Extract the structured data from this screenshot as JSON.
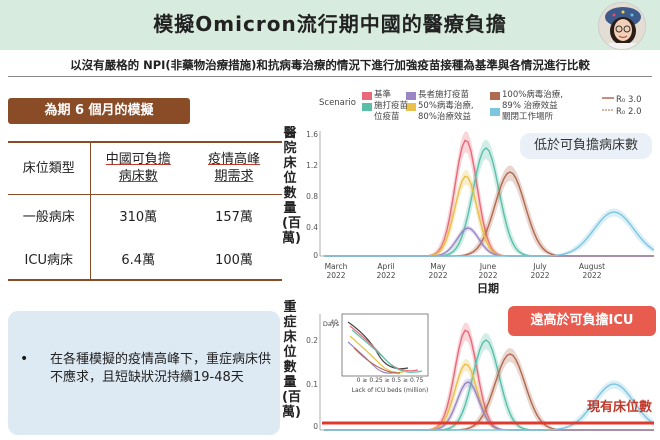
{
  "header": {
    "title": "模擬Omicron流行期中國的醫療負擔",
    "subtitle": "以沒有嚴格的 NPI(非藥物治療措施)和抗病毒治療的情況下進行加強疫苗接種為基準與各情況進行比較"
  },
  "left": {
    "sim_badge": "為期 6 個月的模擬",
    "table": {
      "headers": [
        "床位類型",
        "中國可負擔\n病床數",
        "疫情高峰\n期需求"
      ],
      "h1": "床位類型",
      "h2a": "中國可負擔",
      "h2b": "病床數",
      "h3a": "疫情高峰",
      "h3b": "期需求",
      "rows": [
        {
          "type": "一般病床",
          "capacity": "310萬",
          "peak": "157萬"
        },
        {
          "type": "ICU病床",
          "capacity": "6.4萬",
          "peak": "100萬"
        }
      ]
    },
    "note_bullet": "•",
    "note": "在各種模擬的疫情高峰下，重症病床供不應求，且短缺狀況持續19-48天"
  },
  "charts": {
    "scenario_label": "Scenario",
    "legend": {
      "s1": "基準",
      "s2": "施打疫苗",
      "s2b": "位疫苗",
      "s3": "長者施打疫苗",
      "s4a": "50%病毒治療,",
      "s4b": "80%治療效益",
      "s5a": "100%病毒治療,",
      "s5b": "89% 治療效益",
      "s6": "關閉工作場所",
      "r1": "R₀ 3.0",
      "r2": "R₀ 2.0"
    },
    "top_ylabel": "醫院床位數量(百萬)",
    "bottom_ylabel": "重症床位數量(百萬)",
    "xlabel": "日期",
    "top_yticks": [
      "1.6",
      "1.2",
      "0.8",
      "0.4",
      "0"
    ],
    "bottom_yticks": [
      "0.2",
      "0.1",
      "0"
    ],
    "months": [
      {
        "m": "March",
        "y": "2022"
      },
      {
        "m": "April",
        "y": "2022"
      },
      {
        "m": "May",
        "y": "2022"
      },
      {
        "m": "June",
        "y": "2022"
      },
      {
        "m": "July",
        "y": "2022"
      },
      {
        "m": "August",
        "y": "2022"
      }
    ],
    "inset": {
      "ylabel": "Days",
      "xlabel": "Lack of ICU beds (million)",
      "yticks": [
        "40",
        "30",
        "20",
        "10"
      ],
      "xticks": [
        "0",
        "≥ 0.25",
        "≥ 0.5",
        "≥ 0.75"
      ]
    },
    "callout_low": "低於可負擔病床數",
    "callout_high": "遠高於可負擔ICU",
    "callout_avail": "現有床位數"
  },
  "colors": {
    "title_bg": "#d7ecdf",
    "badge": "#8a4b27",
    "note_bg": "#dde9f3",
    "red": "#e85b4f",
    "s_baseline": "#e86a7a",
    "s_vaccine": "#5bbfa8",
    "s_elder": "#9a86c4",
    "s_50": "#e8c04a",
    "s_100": "#b06a50",
    "s_closure": "#7cc6e0"
  }
}
